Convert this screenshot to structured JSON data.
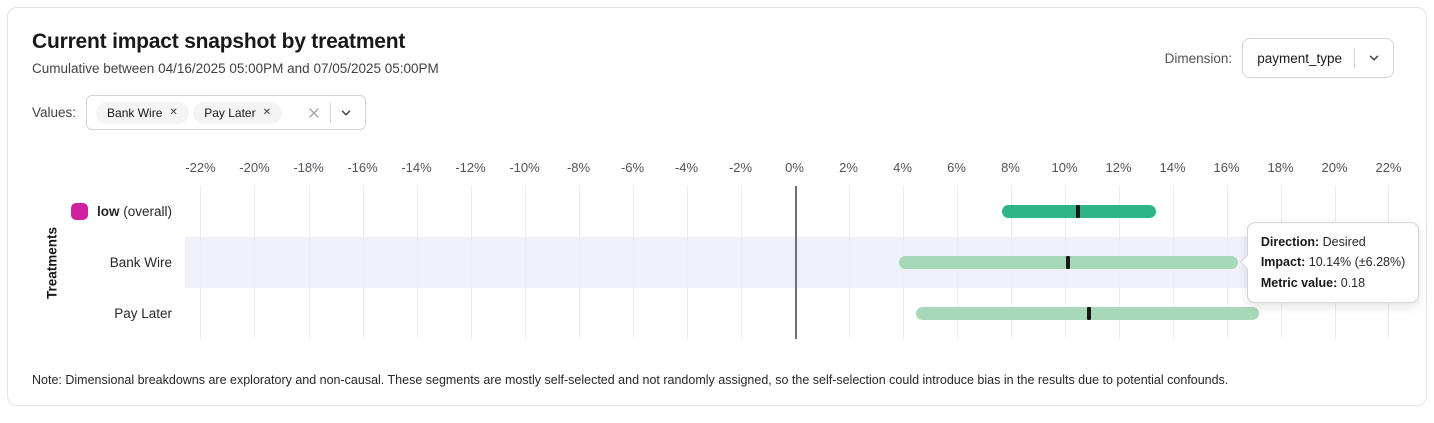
{
  "header": {
    "title": "Current impact snapshot by treatment",
    "subtitle": "Cumulative between 04/16/2025 05:00PM and 07/05/2025 05:00PM",
    "dimension_label": "Dimension:",
    "dimension_value": "payment_type"
  },
  "values_filter": {
    "label": "Values:",
    "chips": [
      "Bank Wire",
      "Pay Later"
    ]
  },
  "icons": {
    "chip_remove": "✕",
    "clear": "clear-x",
    "chevron": "chevron-down"
  },
  "chart_data": {
    "type": "bar",
    "subtype": "horizontal-range-bars-with-point-markers",
    "title": "Current impact snapshot by treatment",
    "ylabel": "Treatments",
    "x_tick_format": "percent",
    "x_ticks": [
      -22,
      -20,
      -18,
      -16,
      -14,
      -12,
      -10,
      -8,
      -6,
      -4,
      -2,
      0,
      2,
      4,
      6,
      8,
      10,
      12,
      14,
      16,
      18,
      20,
      22
    ],
    "x_domain": [
      -22.5,
      22.5
    ],
    "zero_line": 0,
    "grid": true,
    "rows": [
      {
        "label_bold": "low",
        "label_suffix": " (overall)",
        "legend_color": "#d0219e",
        "color": "#2eb486",
        "impact": 10.5,
        "low": 7.7,
        "high": 13.4,
        "highlighted": false
      },
      {
        "label": "Bank Wire",
        "color": "#a7d9b9",
        "impact": 10.14,
        "low": 3.86,
        "high": 16.42,
        "highlighted": true
      },
      {
        "label": "Pay Later",
        "color": "#a7d9b9",
        "impact": 10.9,
        "low": 4.5,
        "high": 17.2,
        "highlighted": false
      }
    ]
  },
  "tooltip": {
    "target_row": "Bank Wire",
    "lines": [
      {
        "label": "Direction:",
        "value": "Desired"
      },
      {
        "label": "Impact:",
        "value": "10.14% (±6.28%)"
      },
      {
        "label": "Metric value:",
        "value": "0.18"
      }
    ]
  },
  "colors": {
    "bar_overall": "#2eb486",
    "bar_segment": "#a7d9b9",
    "legend_magenta": "#d0219e",
    "row_highlight": "#f0f0fb",
    "marker": "#18181b",
    "zero_line": "#6f6f78",
    "gridline": "#ededf1"
  },
  "note": "Note: Dimensional breakdowns are exploratory and non-causal. These segments are mostly self-selected and not randomly assigned, so the self-selection could introduce bias in the results due to potential confounds."
}
